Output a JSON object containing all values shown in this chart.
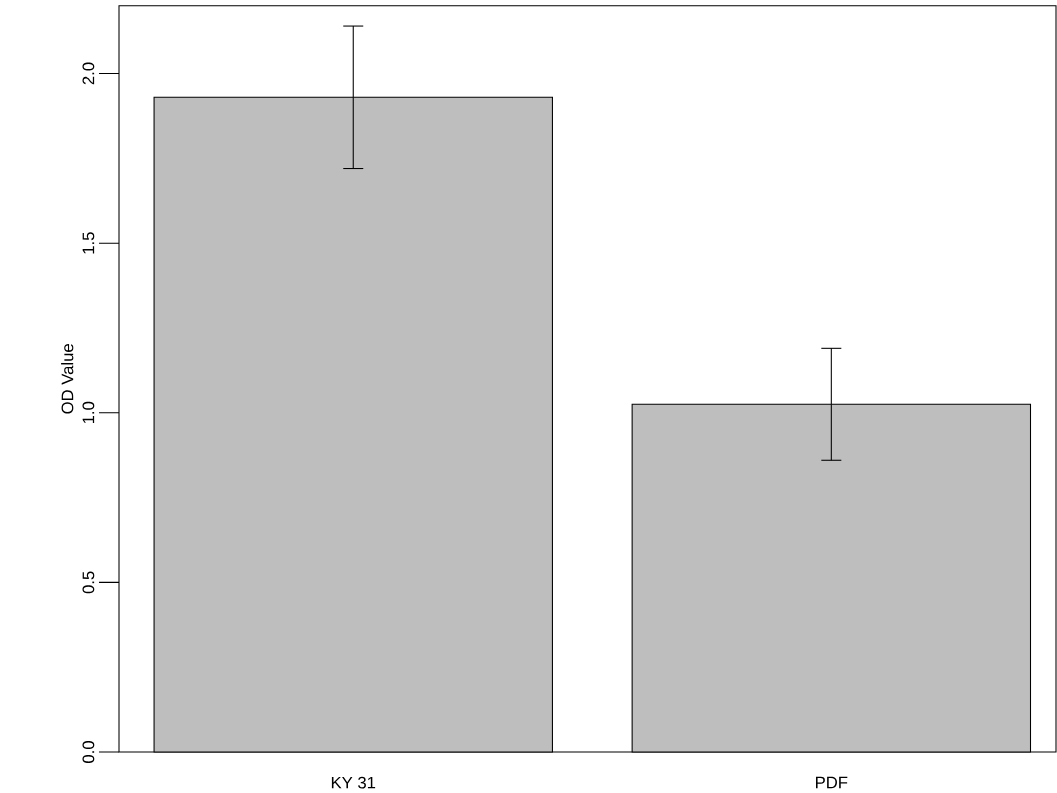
{
  "chart_data": {
    "type": "bar",
    "ylabel": "OD Value",
    "categories": [
      "KY 31",
      "PDF"
    ],
    "values": [
      1.93,
      1.025
    ],
    "color": "#bebebe",
    "errors": [
      [
        1.72,
        2.14
      ],
      [
        0.86,
        1.19
      ]
    ],
    "ylim": [
      0,
      2.2
    ],
    "yticks": [
      {
        "value": 0,
        "label": "0.0"
      },
      {
        "value": 0.5,
        "label": "0.5"
      },
      {
        "value": 1,
        "label": "1.0"
      },
      {
        "value": 1.5,
        "label": "1.5"
      },
      {
        "value": 2,
        "label": "2.0"
      }
    ],
    "grid": false
  }
}
